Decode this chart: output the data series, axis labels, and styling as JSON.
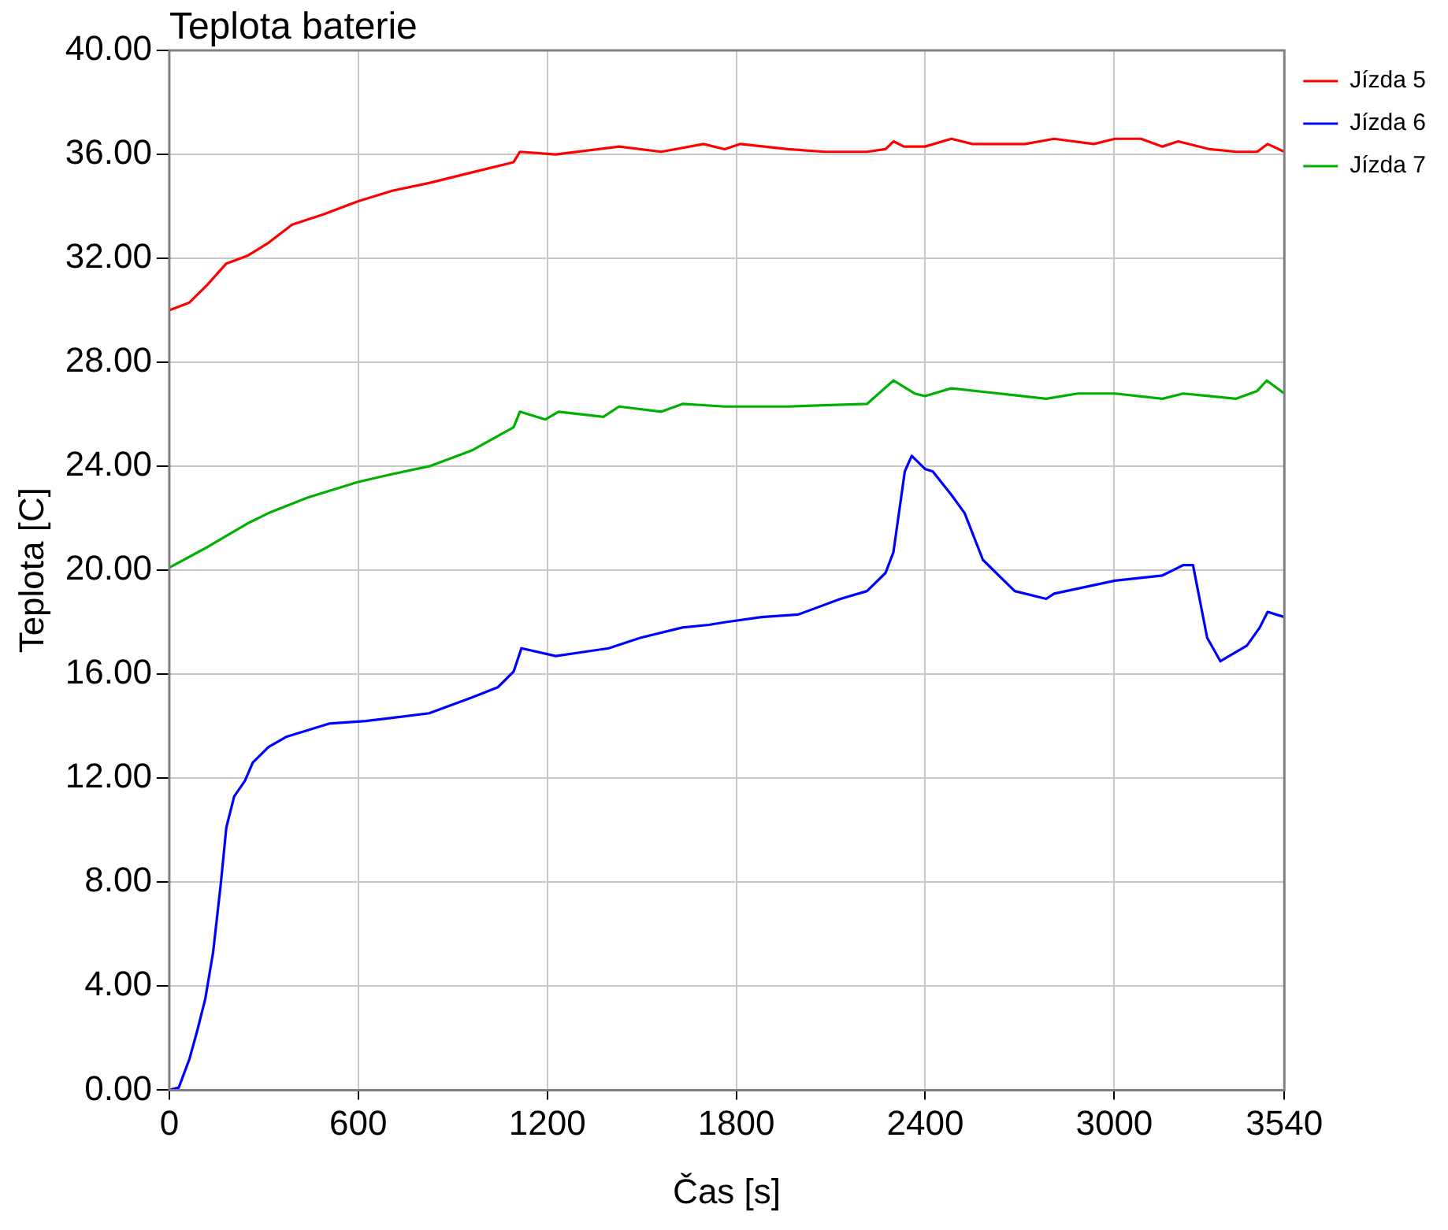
{
  "chart_data": {
    "type": "line",
    "title": "Teplota baterie",
    "xlabel": "Čas [s]",
    "ylabel": "Teplota [C]",
    "xlim": [
      0,
      3540
    ],
    "xticks": [
      0,
      600,
      1200,
      1800,
      2400,
      3000,
      3540
    ],
    "ylim": [
      0,
      40
    ],
    "yticks": [
      {
        "value": 0,
        "label": "0.00"
      },
      {
        "value": 4,
        "label": "4.00"
      },
      {
        "value": 8,
        "label": "8.00"
      },
      {
        "value": 12,
        "label": "12.00"
      },
      {
        "value": 16,
        "label": "16.00"
      },
      {
        "value": 20,
        "label": "20.00"
      },
      {
        "value": 24,
        "label": "24.00"
      },
      {
        "value": 28,
        "label": "28.00"
      },
      {
        "value": 32,
        "label": "32.00"
      },
      {
        "value": 36,
        "label": "36.00"
      },
      {
        "value": 40,
        "label": "40.00"
      }
    ],
    "grid": true,
    "legend": "top right",
    "marker": "none",
    "line_style": "solid",
    "series": [
      {
        "name": "Jízda 5",
        "color": "#ff0000",
        "x": [
          0,
          64,
          122,
          181,
          248,
          315,
          390,
          491,
          600,
          708,
          825,
          959,
          1093,
          1113,
          1227,
          1428,
          1562,
          1696,
          1763,
          1813,
          1964,
          2081,
          2215,
          2274,
          2299,
          2332,
          2399,
          2483,
          2550,
          2717,
          2809,
          2935,
          3002,
          3085,
          3153,
          3203,
          3303,
          3387,
          3454,
          3487,
          3540
        ],
        "values": [
          30.0,
          30.3,
          31.0,
          31.8,
          32.1,
          32.6,
          33.3,
          33.7,
          34.2,
          34.6,
          34.9,
          35.3,
          35.7,
          36.1,
          36.0,
          36.3,
          36.1,
          36.4,
          36.2,
          36.4,
          36.2,
          36.1,
          36.1,
          36.2,
          36.5,
          36.3,
          36.3,
          36.6,
          36.4,
          36.4,
          36.6,
          36.4,
          36.6,
          36.6,
          36.3,
          36.5,
          36.2,
          36.1,
          36.1,
          36.4,
          36.1
        ]
      },
      {
        "name": "Jízda 6",
        "color": "#0000ff",
        "x": [
          0,
          30,
          64,
          89,
          114,
          139,
          164,
          181,
          206,
          240,
          265,
          315,
          373,
          507,
          624,
          825,
          959,
          1043,
          1093,
          1118,
          1227,
          1395,
          1495,
          1629,
          1713,
          1763,
          1880,
          1997,
          2131,
          2215,
          2274,
          2299,
          2335,
          2357,
          2399,
          2424,
          2483,
          2525,
          2583,
          2684,
          2784,
          2809,
          3002,
          3153,
          3219,
          3250,
          3295,
          3337,
          3421,
          3462,
          3487,
          3540
        ],
        "values": [
          0.0,
          0.1,
          1.2,
          2.3,
          3.5,
          5.3,
          8.0,
          10.1,
          11.3,
          11.9,
          12.6,
          13.2,
          13.6,
          14.1,
          14.2,
          14.5,
          15.1,
          15.5,
          16.1,
          17.0,
          16.7,
          17.0,
          17.4,
          17.8,
          17.9,
          18.0,
          18.2,
          18.3,
          18.9,
          19.2,
          19.9,
          20.7,
          23.8,
          24.4,
          23.9,
          23.8,
          22.9,
          22.2,
          20.4,
          19.2,
          18.9,
          19.1,
          19.6,
          19.8,
          20.2,
          20.2,
          17.4,
          16.5,
          17.1,
          17.8,
          18.4,
          18.2
        ]
      },
      {
        "name": "Jízda 7",
        "color": "#00b000",
        "x": [
          0,
          122,
          248,
          315,
          440,
          600,
          708,
          825,
          959,
          1093,
          1113,
          1194,
          1236,
          1378,
          1428,
          1562,
          1629,
          1763,
          1813,
          1964,
          2215,
          2299,
          2366,
          2399,
          2483,
          2634,
          2784,
          2884,
          3002,
          3153,
          3219,
          3387,
          3454,
          3484,
          3540
        ],
        "values": [
          20.1,
          20.9,
          21.8,
          22.2,
          22.8,
          23.4,
          23.7,
          24.0,
          24.6,
          25.5,
          26.1,
          25.8,
          26.1,
          25.9,
          26.3,
          26.1,
          26.4,
          26.3,
          26.3,
          26.3,
          26.4,
          27.3,
          26.8,
          26.7,
          27.0,
          26.8,
          26.6,
          26.8,
          26.8,
          26.6,
          26.8,
          26.6,
          26.9,
          27.3,
          26.8
        ]
      }
    ]
  }
}
